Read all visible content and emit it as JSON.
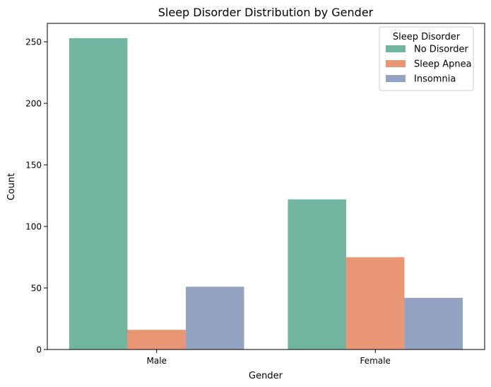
{
  "chart_data": {
    "type": "bar",
    "title": "Sleep Disorder Distribution by Gender",
    "xlabel": "Gender",
    "ylabel": "Count",
    "categories": [
      "Male",
      "Female"
    ],
    "ylim": [
      0,
      265
    ],
    "yticks": [
      0,
      50,
      100,
      150,
      200,
      250
    ],
    "grid": false,
    "legend": {
      "title": "Sleep Disorder",
      "placement": "top-right"
    },
    "series": [
      {
        "name": "No Disorder",
        "color": "#72b6a1",
        "values": [
          253,
          122
        ]
      },
      {
        "name": "Sleep Apnea",
        "color": "#e99675",
        "values": [
          16,
          75
        ]
      },
      {
        "name": "Insomnia",
        "color": "#95a3c3",
        "values": [
          51,
          42
        ]
      }
    ]
  }
}
